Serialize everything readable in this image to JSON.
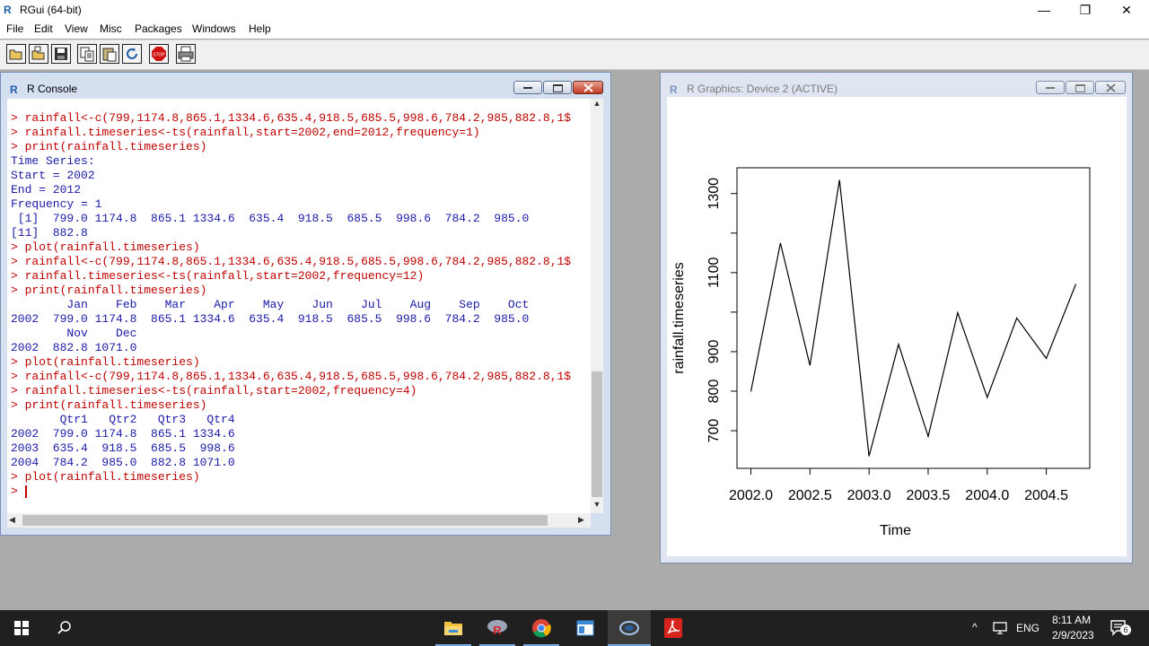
{
  "app": {
    "title": "RGui (64-bit)",
    "icon": "R-logo-icon"
  },
  "window_controls": {
    "minimize": "—",
    "restore": "❐",
    "close": "✕"
  },
  "menu": [
    "File",
    "Edit",
    "View",
    "Misc",
    "Packages",
    "Windows",
    "Help"
  ],
  "toolbar": [
    "open-script-icon",
    "load-workspace-icon",
    "save-icon",
    "copy-icon",
    "paste-icon",
    "refresh-icon",
    "stop-icon",
    "print-icon"
  ],
  "toolbar_stop_label": "STOP",
  "console": {
    "title": "R Console",
    "lines": [
      {
        "t": "> rainfall<-c(799,1174.8,865.1,1334.6,635.4,918.5,685.5,998.6,784.2,985,882.8,1$",
        "k": "cmd"
      },
      {
        "t": "> rainfall.timeseries<-ts(rainfall,start=2002,end=2012,frequency=1)",
        "k": "cmd"
      },
      {
        "t": "> print(rainfall.timeseries)",
        "k": "cmd"
      },
      {
        "t": "Time Series:",
        "k": "out"
      },
      {
        "t": "Start = 2002",
        "k": "out"
      },
      {
        "t": "End = 2012",
        "k": "out"
      },
      {
        "t": "Frequency = 1",
        "k": "out"
      },
      {
        "t": " [1]  799.0 1174.8  865.1 1334.6  635.4  918.5  685.5  998.6  784.2  985.0",
        "k": "out"
      },
      {
        "t": "[11]  882.8",
        "k": "out"
      },
      {
        "t": "> plot(rainfall.timeseries)",
        "k": "cmd"
      },
      {
        "t": "> rainfall<-c(799,1174.8,865.1,1334.6,635.4,918.5,685.5,998.6,784.2,985,882.8,1$",
        "k": "cmd"
      },
      {
        "t": "> rainfall.timeseries<-ts(rainfall,start=2002,frequency=12)",
        "k": "cmd"
      },
      {
        "t": "> print(rainfall.timeseries)",
        "k": "cmd"
      },
      {
        "t": "        Jan    Feb    Mar    Apr    May    Jun    Jul    Aug    Sep    Oct",
        "k": "out"
      },
      {
        "t": "2002  799.0 1174.8  865.1 1334.6  635.4  918.5  685.5  998.6  784.2  985.0",
        "k": "out"
      },
      {
        "t": "        Nov    Dec",
        "k": "out"
      },
      {
        "t": "2002  882.8 1071.0",
        "k": "out"
      },
      {
        "t": "> plot(rainfall.timeseries)",
        "k": "cmd"
      },
      {
        "t": "> rainfall<-c(799,1174.8,865.1,1334.6,635.4,918.5,685.5,998.6,784.2,985,882.8,1$",
        "k": "cmd"
      },
      {
        "t": "> rainfall.timeseries<-ts(rainfall,start=2002,frequency=4)",
        "k": "cmd"
      },
      {
        "t": "> print(rainfall.timeseries)",
        "k": "cmd"
      },
      {
        "t": "       Qtr1   Qtr2   Qtr3   Qtr4",
        "k": "out"
      },
      {
        "t": "2002  799.0 1174.8  865.1 1334.6",
        "k": "out"
      },
      {
        "t": "2003  635.4  918.5  685.5  998.6",
        "k": "out"
      },
      {
        "t": "2004  784.2  985.0  882.8 1071.0",
        "k": "out"
      },
      {
        "t": "> plot(rainfall.timeseries)",
        "k": "cmd"
      },
      {
        "t": "> ",
        "k": "cmd"
      }
    ]
  },
  "graphics": {
    "title": "R Graphics: Device 2 (ACTIVE)"
  },
  "chart_data": {
    "type": "line",
    "x": [
      2002.0,
      2002.25,
      2002.5,
      2002.75,
      2003.0,
      2003.25,
      2003.5,
      2003.75,
      2004.0,
      2004.25,
      2004.5,
      2004.75
    ],
    "values": [
      799.0,
      1174.8,
      865.1,
      1334.6,
      635.4,
      918.5,
      685.5,
      998.6,
      784.2,
      985.0,
      882.8,
      1071.0
    ],
    "xlabel": "Time",
    "ylabel": "rainfall.timeseries",
    "xticks": [
      "2002.0",
      "2002.5",
      "2003.0",
      "2003.5",
      "2004.0",
      "2004.5"
    ],
    "yticks": [
      "700",
      "800",
      "900",
      "1100",
      "1300"
    ],
    "xlim": [
      2002.0,
      2004.75
    ],
    "ylim": [
      635.4,
      1334.6
    ],
    "grid": false
  },
  "taskbar": {
    "apps": [
      "file-explorer-icon",
      "r-app-icon",
      "chrome-icon",
      "app-window-icon",
      "cortana-icon",
      "acrobat-icon"
    ],
    "lang": "ENG",
    "time": "8:11 AM",
    "date": "2/9/2023",
    "notification_count": "6"
  }
}
